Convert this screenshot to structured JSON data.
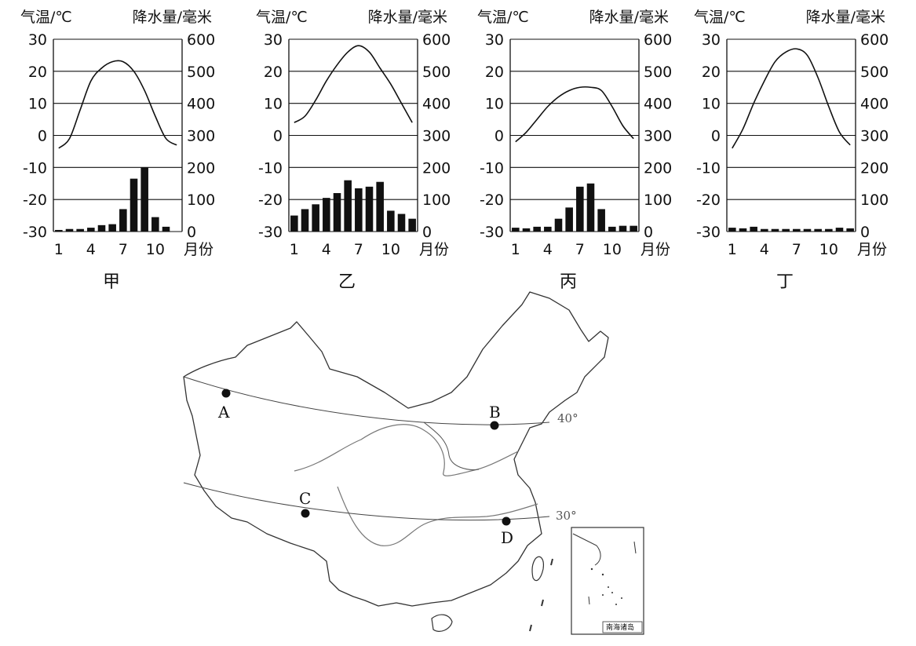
{
  "chart_data": [
    {
      "type": "bar",
      "caption": "甲",
      "left_axis_title": "气温/℃",
      "right_axis_title": "降水量/毫米",
      "x_axis_title": "月份",
      "months": [
        1,
        2,
        3,
        4,
        5,
        6,
        7,
        8,
        9,
        10,
        11,
        12
      ],
      "x_ticks": [
        "1",
        "4",
        "7",
        "10"
      ],
      "temp_ylim": [
        -30,
        30
      ],
      "temp_ticks": [
        "30",
        "20",
        "10",
        "0",
        "-10",
        "-20",
        "-30"
      ],
      "precip_ylim": [
        0,
        600
      ],
      "precip_ticks": [
        "600",
        "500",
        "400",
        "300",
        "200",
        "100",
        "0"
      ],
      "series": [
        {
          "name": "气温",
          "kind": "line",
          "values": [
            -4,
            -1,
            8,
            17,
            21,
            23,
            23,
            20,
            14,
            6,
            -1,
            -3
          ]
        },
        {
          "name": "降水量",
          "kind": "bar",
          "values": [
            5,
            8,
            8,
            12,
            20,
            23,
            70,
            165,
            200,
            45,
            15,
            0
          ]
        }
      ]
    },
    {
      "type": "bar",
      "caption": "乙",
      "left_axis_title": "气温/℃",
      "right_axis_title": "降水量/毫米",
      "x_axis_title": "月份",
      "months": [
        1,
        2,
        3,
        4,
        5,
        6,
        7,
        8,
        9,
        10,
        11,
        12
      ],
      "x_ticks": [
        "1",
        "4",
        "7",
        "10"
      ],
      "temp_ylim": [
        -30,
        30
      ],
      "temp_ticks": [
        "30",
        "20",
        "10",
        "0",
        "-10",
        "-20",
        "-30"
      ],
      "precip_ylim": [
        0,
        600
      ],
      "precip_ticks": [
        "600",
        "500",
        "400",
        "300",
        "200",
        "100",
        "0"
      ],
      "series": [
        {
          "name": "气温",
          "kind": "line",
          "values": [
            4,
            6,
            11,
            17,
            22,
            26,
            28,
            26,
            21,
            16,
            10,
            4
          ]
        },
        {
          "name": "降水量",
          "kind": "bar",
          "values": [
            50,
            70,
            85,
            105,
            120,
            160,
            135,
            140,
            155,
            65,
            55,
            40
          ]
        }
      ]
    },
    {
      "type": "bar",
      "caption": "丙",
      "left_axis_title": "气温/℃",
      "right_axis_title": "降水量/毫米",
      "x_axis_title": "月份",
      "months": [
        1,
        2,
        3,
        4,
        5,
        6,
        7,
        8,
        9,
        10,
        11,
        12
      ],
      "x_ticks": [
        "1",
        "4",
        "7",
        "10"
      ],
      "temp_ylim": [
        -30,
        30
      ],
      "temp_ticks": [
        "30",
        "20",
        "10",
        "0",
        "-10",
        "-20",
        "-30"
      ],
      "precip_ylim": [
        0,
        600
      ],
      "precip_ticks": [
        "600",
        "500",
        "400",
        "300",
        "200",
        "100",
        "0"
      ],
      "series": [
        {
          "name": "气温",
          "kind": "line",
          "values": [
            -2,
            1,
            5,
            9,
            12,
            14,
            15,
            15,
            14,
            9,
            3,
            -1
          ]
        },
        {
          "name": "降水量",
          "kind": "bar",
          "values": [
            12,
            10,
            15,
            15,
            40,
            75,
            140,
            150,
            70,
            15,
            18,
            18
          ]
        }
      ]
    },
    {
      "type": "bar",
      "caption": "丁",
      "left_axis_title": "气温/℃",
      "right_axis_title": "降水量/毫米",
      "x_axis_title": "月份",
      "months": [
        1,
        2,
        3,
        4,
        5,
        6,
        7,
        8,
        9,
        10,
        11,
        12
      ],
      "x_ticks": [
        "1",
        "4",
        "7",
        "10"
      ],
      "temp_ylim": [
        -30,
        30
      ],
      "temp_ticks": [
        "30",
        "20",
        "10",
        "0",
        "-10",
        "-20",
        "-30"
      ],
      "precip_ylim": [
        0,
        600
      ],
      "precip_ticks": [
        "600",
        "500",
        "400",
        "300",
        "200",
        "100",
        "0"
      ],
      "series": [
        {
          "name": "气温",
          "kind": "line",
          "values": [
            -4,
            2,
            10,
            17,
            23,
            26,
            27,
            25,
            18,
            9,
            1,
            -3
          ]
        },
        {
          "name": "降水量",
          "kind": "bar",
          "values": [
            12,
            10,
            15,
            8,
            8,
            8,
            8,
            8,
            8,
            8,
            12,
            10
          ]
        }
      ]
    }
  ],
  "map": {
    "points": [
      {
        "label": "A"
      },
      {
        "label": "B"
      },
      {
        "label": "C"
      },
      {
        "label": "D"
      }
    ],
    "latitudes": [
      {
        "label": "40°"
      },
      {
        "label": "30°"
      }
    ],
    "inset_label": "南海诸岛",
    "colors": {
      "ink": "#111111",
      "river": "#777777",
      "border": "#333333"
    }
  }
}
